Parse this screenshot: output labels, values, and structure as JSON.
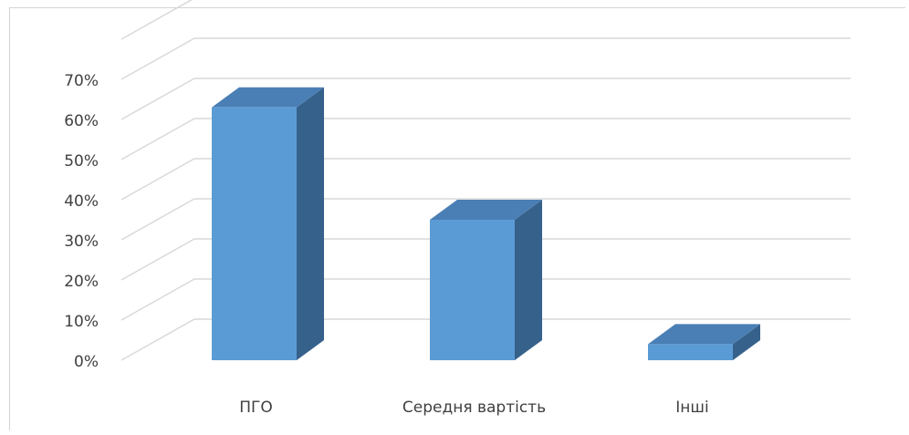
{
  "chart_data": {
    "type": "bar",
    "title": "",
    "xlabel": "",
    "ylabel": "",
    "categories": [
      "ПГО",
      "Середня вартість",
      "Інші"
    ],
    "values": [
      0.63,
      0.35,
      0.04
    ],
    "ylim": [
      0,
      0.7
    ],
    "yticks": [
      0,
      0.1,
      0.2,
      0.3,
      0.4,
      0.5,
      0.6,
      0.7
    ],
    "ytick_labels": [
      "0%",
      "10%",
      "20%",
      "30%",
      "40%",
      "50%",
      "60%",
      "70%"
    ],
    "grid": true,
    "style": "3d-column",
    "colors": {
      "front": "#5b9bd5",
      "side": "#36618b",
      "top": "#4a7fb5",
      "grid": "#d9d9d9",
      "tick_text": "#404040"
    }
  }
}
